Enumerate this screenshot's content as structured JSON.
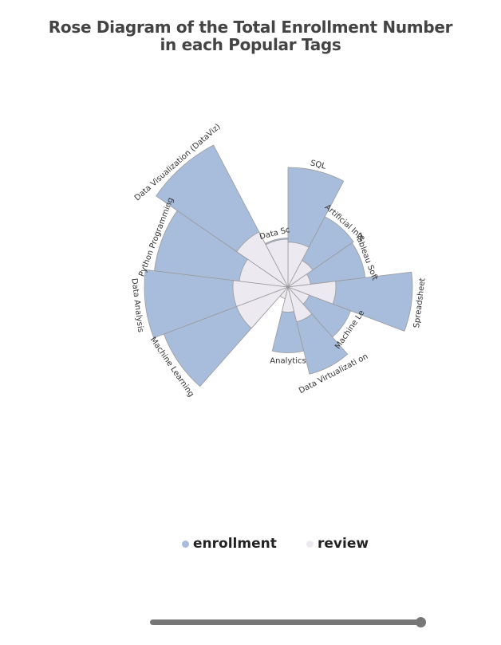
{
  "title": [
    "Rose Diagram of the Total Enrollment Number",
    "in each Popular Tags"
  ],
  "legend": [
    {
      "label": "enrollment",
      "color": "#a8bddb"
    },
    {
      "label": "review",
      "color": "#ede9f1"
    }
  ],
  "chart_data": {
    "type": "rose",
    "series": [
      {
        "name": "enrollment",
        "color": "#a8bddb"
      },
      {
        "name": "review",
        "color": "#ede9f1"
      }
    ],
    "categories": [
      {
        "label": "SQL",
        "enrollment": 200,
        "review": 75
      },
      {
        "label": "Artificial Inte",
        "enrollment": 133,
        "review": 50
      },
      {
        "label": "Tableau Soft",
        "enrollment": 130,
        "review": 38
      },
      {
        "label": "Spreadsheet",
        "enrollment": 208,
        "review": 80
      },
      {
        "label": "Machine Le",
        "enrollment": 112,
        "review": 38
      },
      {
        "label": "Data Virtualizati on",
        "enrollment": 150,
        "review": 60
      },
      {
        "label": "Analytics",
        "enrollment": 110,
        "review": 42
      },
      {
        "label": "",
        "enrollment": 12,
        "review": 20
      },
      {
        "label": "Machine Learning",
        "enrollment": 222,
        "review": 92
      },
      {
        "label": "Data Analysis",
        "enrollment": 240,
        "review": 92
      },
      {
        "label": "Python Programming",
        "enrollment": 225,
        "review": 82
      },
      {
        "label": "Data Visualization (DataViz)",
        "enrollment": 268,
        "review": 104
      },
      {
        "label": "Data Sc",
        "enrollment": 82,
        "review": 80
      }
    ],
    "grid": false,
    "legend_position": "bottom"
  }
}
